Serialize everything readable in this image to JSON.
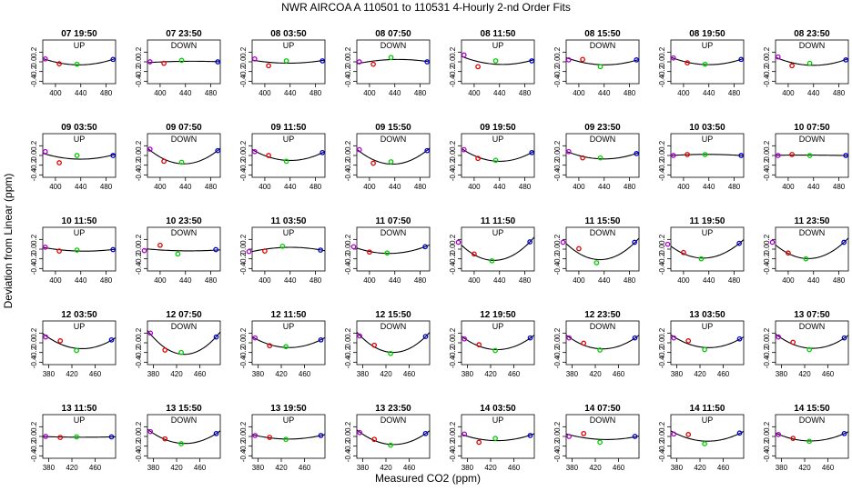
{
  "chart_data": {
    "type": "scatter",
    "title": "NWR   AIRCOA A    110501 to 110531   4-Hourly 2-nd Order Fits",
    "xlabel": "Measured CO2 (ppm)",
    "ylabel": "Deviation from Linear (ppm)",
    "ylim": [
      -0.45,
      0.45
    ],
    "yticks": [
      "-0.4",
      "-0.2",
      "0.0",
      "0.2"
    ],
    "grid": false,
    "series_colors": {
      "a": "#b000d0",
      "b": "#e00000",
      "c": "#00cc00",
      "d": "#0000d0"
    },
    "rows": [
      {
        "xlim": [
          380,
          495
        ],
        "xticks": [
          400,
          440,
          480
        ]
      },
      {
        "xlim": [
          380,
          495
        ],
        "xticks": [
          400,
          440,
          480
        ]
      },
      {
        "xlim": [
          380,
          495
        ],
        "xticks": [
          400,
          440,
          480
        ]
      },
      {
        "xlim": [
          370,
          495
        ],
        "xticks": [
          380,
          420,
          460
        ]
      },
      {
        "xlim": [
          370,
          495
        ],
        "xticks": [
          380,
          420,
          460
        ]
      }
    ],
    "panels": [
      {
        "title": "07 19:50",
        "label": "UP",
        "x": [
          384,
          406,
          434,
          491
        ],
        "y": [
          0.06,
          -0.04,
          -0.05,
          0.05
        ]
      },
      {
        "title": "07 23:50",
        "label": "DOWN",
        "x": [
          384,
          406,
          434,
          491
        ],
        "y": [
          0.0,
          -0.03,
          0.03,
          0.0
        ]
      },
      {
        "title": "08 03:50",
        "label": "UP",
        "x": [
          384,
          406,
          434,
          491
        ],
        "y": [
          0.06,
          -0.08,
          0.02,
          0.02
        ]
      },
      {
        "title": "08 07:50",
        "label": "DOWN",
        "x": [
          384,
          406,
          434,
          491
        ],
        "y": [
          0.0,
          -0.05,
          0.09,
          0.0
        ]
      },
      {
        "title": "08 11:50",
        "label": "UP",
        "x": [
          384,
          406,
          434,
          491
        ],
        "y": [
          0.14,
          -0.1,
          0.02,
          0.02
        ]
      },
      {
        "title": "08 15:50",
        "label": "DOWN",
        "x": [
          384,
          406,
          434,
          491
        ],
        "y": [
          0.04,
          0.05,
          -0.1,
          0.04
        ]
      },
      {
        "title": "08 19:50",
        "label": "UP",
        "x": [
          384,
          406,
          434,
          491
        ],
        "y": [
          0.08,
          -0.02,
          -0.05,
          0.05
        ]
      },
      {
        "title": "08 23:50",
        "label": "DOWN",
        "x": [
          384,
          406,
          434,
          491
        ],
        "y": [
          0.1,
          -0.08,
          -0.03,
          0.04
        ]
      },
      {
        "title": "09 03:50",
        "label": "UP",
        "x": [
          384,
          406,
          434,
          491
        ],
        "y": [
          0.08,
          -0.15,
          0.0,
          0.0
        ]
      },
      {
        "title": "09 07:50",
        "label": "DOWN",
        "x": [
          384,
          406,
          434,
          491
        ],
        "y": [
          0.13,
          -0.12,
          -0.14,
          0.1
        ]
      },
      {
        "title": "09 11:50",
        "label": "UP",
        "x": [
          384,
          406,
          434,
          491
        ],
        "y": [
          0.08,
          0.0,
          -0.12,
          0.06
        ]
      },
      {
        "title": "09 15:50",
        "label": "DOWN",
        "x": [
          384,
          406,
          434,
          491
        ],
        "y": [
          0.12,
          -0.16,
          -0.13,
          0.1
        ]
      },
      {
        "title": "09 19:50",
        "label": "UP",
        "x": [
          384,
          406,
          434,
          491
        ],
        "y": [
          0.12,
          -0.06,
          -0.1,
          0.06
        ]
      },
      {
        "title": "09 23:50",
        "label": "DOWN",
        "x": [
          384,
          406,
          434,
          491
        ],
        "y": [
          0.08,
          -0.05,
          -0.05,
          0.04
        ]
      },
      {
        "title": "10 03:50",
        "label": "UP",
        "x": [
          384,
          406,
          434,
          491
        ],
        "y": [
          0.0,
          0.02,
          0.02,
          0.0
        ]
      },
      {
        "title": "10 07:50",
        "label": "DOWN",
        "x": [
          384,
          406,
          434,
          491
        ],
        "y": [
          0.0,
          0.02,
          0.0,
          0.0
        ]
      },
      {
        "title": "10 11:50",
        "label": "UP",
        "x": [
          384,
          406,
          434,
          491
        ],
        "y": [
          0.04,
          -0.04,
          -0.02,
          -0.01
        ]
      },
      {
        "title": "10 23:50",
        "label": "DOWN",
        "x": [
          375,
          400,
          428,
          488
        ],
        "y": [
          -0.03,
          0.08,
          -0.1,
          -0.01
        ]
      },
      {
        "title": "11 03:50",
        "label": "UP",
        "x": [
          375,
          400,
          428,
          488
        ],
        "y": [
          -0.05,
          -0.04,
          0.06,
          -0.02
        ]
      },
      {
        "title": "11 07:50",
        "label": "DOWN",
        "x": [
          375,
          400,
          428,
          488
        ],
        "y": [
          0.05,
          -0.06,
          -0.08,
          0.05
        ]
      },
      {
        "title": "11 11:50",
        "label": "UP",
        "x": [
          375,
          400,
          428,
          488
        ],
        "y": [
          0.14,
          -0.1,
          -0.24,
          0.15
        ]
      },
      {
        "title": "11 15:50",
        "label": "DOWN",
        "x": [
          375,
          400,
          428,
          488
        ],
        "y": [
          0.14,
          0.01,
          -0.28,
          0.14
        ]
      },
      {
        "title": "11 19:50",
        "label": "UP",
        "x": [
          375,
          400,
          428,
          488
        ],
        "y": [
          0.1,
          -0.07,
          -0.2,
          0.12
        ]
      },
      {
        "title": "11 23:50",
        "label": "DOWN",
        "x": [
          375,
          400,
          428,
          488
        ],
        "y": [
          0.14,
          -0.08,
          -0.2,
          0.14
        ]
      },
      {
        "title": "12 03:50",
        "label": "UP",
        "x": [
          375,
          400,
          428,
          488
        ],
        "y": [
          0.12,
          0.04,
          -0.16,
          0.06
        ]
      },
      {
        "title": "12 07:50",
        "label": "DOWN",
        "x": [
          375,
          400,
          428,
          488
        ],
        "y": [
          0.2,
          -0.15,
          -0.2,
          0.12
        ]
      },
      {
        "title": "12 11:50",
        "label": "UP",
        "x": [
          375,
          400,
          428,
          488
        ],
        "y": [
          0.1,
          -0.06,
          -0.08,
          0.06
        ]
      },
      {
        "title": "12 15:50",
        "label": "DOWN",
        "x": [
          375,
          400,
          428,
          488
        ],
        "y": [
          0.14,
          -0.05,
          -0.22,
          0.13
        ]
      },
      {
        "title": "12 19:50",
        "label": "UP",
        "x": [
          375,
          400,
          428,
          488
        ],
        "y": [
          0.08,
          -0.04,
          -0.16,
          0.1
        ]
      },
      {
        "title": "12 23:50",
        "label": "DOWN",
        "x": [
          375,
          400,
          428,
          488
        ],
        "y": [
          0.1,
          -0.01,
          -0.15,
          0.1
        ]
      },
      {
        "title": "13 03:50",
        "label": "UP",
        "x": [
          375,
          400,
          428,
          488
        ],
        "y": [
          0.1,
          0.04,
          -0.14,
          0.08
        ]
      },
      {
        "title": "13 07:50",
        "label": "DOWN",
        "x": [
          375,
          400,
          428,
          488
        ],
        "y": [
          0.12,
          0.01,
          -0.14,
          0.1
        ]
      },
      {
        "title": "13 11:50",
        "label": "UP",
        "x": [
          375,
          400,
          428,
          488
        ],
        "y": [
          0.0,
          -0.02,
          -0.01,
          -0.01
        ]
      },
      {
        "title": "13 15:50",
        "label": "DOWN",
        "x": [
          375,
          400,
          428,
          488
        ],
        "y": [
          0.1,
          -0.05,
          -0.15,
          0.06
        ]
      },
      {
        "title": "13 19:50",
        "label": "UP",
        "x": [
          375,
          400,
          428,
          488
        ],
        "y": [
          0.02,
          -0.02,
          -0.06,
          0.02
        ]
      },
      {
        "title": "13 23:50",
        "label": "DOWN",
        "x": [
          375,
          400,
          428,
          488
        ],
        "y": [
          0.08,
          -0.06,
          -0.18,
          0.06
        ]
      },
      {
        "title": "14 03:50",
        "label": "UP",
        "x": [
          375,
          400,
          428,
          488
        ],
        "y": [
          0.05,
          -0.12,
          -0.04,
          0.02
        ]
      },
      {
        "title": "14 07:50",
        "label": "DOWN",
        "x": [
          375,
          400,
          428,
          488
        ],
        "y": [
          0.0,
          0.06,
          -0.12,
          0.0
        ]
      },
      {
        "title": "14 11:50",
        "label": "UP",
        "x": [
          375,
          400,
          428,
          488
        ],
        "y": [
          0.05,
          0.04,
          -0.15,
          0.07
        ]
      },
      {
        "title": "14 15:50",
        "label": "DOWN",
        "x": [
          375,
          400,
          428,
          488
        ],
        "y": [
          0.04,
          -0.04,
          -0.1,
          0.06
        ]
      }
    ]
  }
}
